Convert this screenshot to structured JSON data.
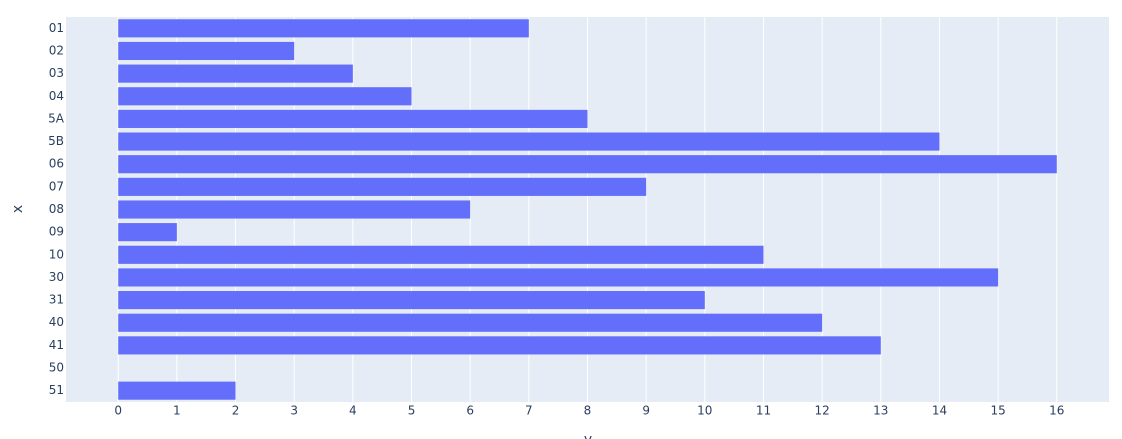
{
  "chart_data": {
    "type": "bar",
    "orientation": "h",
    "x_label": "y",
    "y_label": "x",
    "categories": [
      "01",
      "02",
      "03",
      "04",
      "5A",
      "5B",
      "06",
      "07",
      "08",
      "09",
      "10",
      "30",
      "31",
      "40",
      "41",
      "50",
      "51"
    ],
    "values": [
      7,
      3,
      4,
      5,
      8,
      14,
      16,
      9,
      6,
      1,
      11,
      15,
      10,
      12,
      13,
      0,
      2
    ],
    "color": "#636efa",
    "xlim": [
      -0.89,
      16.89
    ],
    "xticks": [
      0,
      1,
      2,
      3,
      4,
      5,
      6,
      7,
      8,
      9,
      10,
      11,
      12,
      13,
      14,
      15,
      16
    ],
    "grid": true
  }
}
